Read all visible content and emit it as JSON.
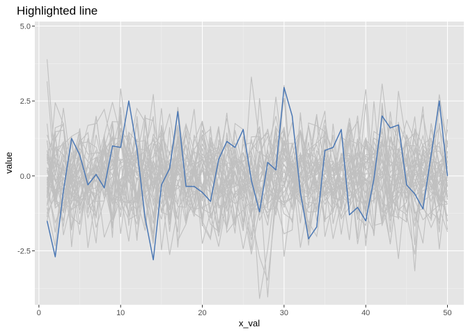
{
  "chart_data": {
    "type": "line",
    "title": "Highlighted line",
    "xlabel": "x_val",
    "ylabel": "value",
    "xlim": [
      -0.5,
      52
    ],
    "ylim": [
      -4.3,
      5.15
    ],
    "x_ticks": [
      0,
      10,
      20,
      30,
      40,
      50
    ],
    "x_tick_labels": [
      "0",
      "10",
      "20",
      "30",
      "40",
      "50"
    ],
    "y_ticks": [
      -2.5,
      0,
      2.5,
      5
    ],
    "y_tick_labels": [
      "-2.5",
      "0.0",
      "2.5",
      "5.0"
    ],
    "grid": true,
    "legend": "none",
    "colors": {
      "panel": "#e5e5e5",
      "grid_major": "#ffffff",
      "grid_minor": "#f0f0f0",
      "background_lines": "#c0c0c0",
      "highlight": "#4a77b4",
      "tick": "#333333"
    },
    "highlighted_series": {
      "x": [
        1,
        2,
        3,
        4,
        5,
        6,
        7,
        8,
        9,
        10,
        11,
        12,
        13,
        14,
        15,
        16,
        17,
        18,
        19,
        20,
        21,
        22,
        23,
        24,
        25,
        26,
        27,
        28,
        29,
        30,
        31,
        32,
        33,
        34,
        35,
        36,
        37,
        38,
        39,
        40,
        41,
        42,
        43,
        44,
        45,
        46,
        47,
        48,
        49,
        50
      ],
      "values": [
        -1.5,
        -2.7,
        -0.5,
        1.25,
        0.7,
        -0.3,
        0.05,
        -0.4,
        1.0,
        0.95,
        2.5,
        0.9,
        -1.4,
        -2.8,
        -0.3,
        0.25,
        2.15,
        -0.35,
        -0.35,
        -0.55,
        -0.85,
        0.55,
        1.15,
        0.95,
        1.55,
        -0.15,
        -1.2,
        0.45,
        0.2,
        2.95,
        2.0,
        -0.55,
        -2.1,
        -1.7,
        0.85,
        0.95,
        1.55,
        -1.3,
        -1.05,
        -1.5,
        -0.1,
        2.0,
        1.6,
        1.7,
        -0.3,
        -0.6,
        -1.1,
        0.7,
        2.5,
        0.0
      ]
    },
    "background_series_count": 39
  }
}
